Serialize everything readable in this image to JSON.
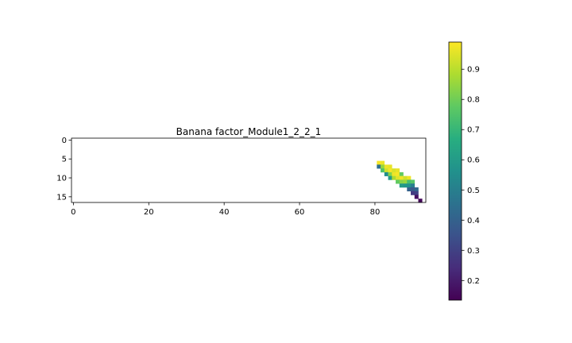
{
  "chart_data": {
    "type": "heatmap",
    "title": "Banana factor_Module1_2_2_1",
    "xlabel": "",
    "ylabel": "",
    "x_range": [
      -0.5,
      93.5
    ],
    "y_range": [
      16.5,
      -0.5
    ],
    "x_ticks": [
      0,
      20,
      40,
      60,
      80
    ],
    "y_ticks": [
      0,
      5,
      10,
      15
    ],
    "colormap": "viridis",
    "colorbar": {
      "range": [
        0.135,
        0.99
      ],
      "ticks": [
        0.2,
        0.3,
        0.4,
        0.5,
        0.6,
        0.7,
        0.8,
        0.9
      ]
    },
    "cells": [
      {
        "x": 81,
        "y": 6,
        "v": 0.98
      },
      {
        "x": 82,
        "y": 6,
        "v": 0.97
      },
      {
        "x": 81,
        "y": 7,
        "v": 0.45
      },
      {
        "x": 82,
        "y": 7,
        "v": 0.85
      },
      {
        "x": 83,
        "y": 7,
        "v": 0.97
      },
      {
        "x": 84,
        "y": 7,
        "v": 0.96
      },
      {
        "x": 82,
        "y": 8,
        "v": 0.75
      },
      {
        "x": 83,
        "y": 8,
        "v": 0.93
      },
      {
        "x": 84,
        "y": 8,
        "v": 0.98
      },
      {
        "x": 85,
        "y": 8,
        "v": 0.94
      },
      {
        "x": 86,
        "y": 8,
        "v": 0.96
      },
      {
        "x": 83,
        "y": 9,
        "v": 0.55
      },
      {
        "x": 84,
        "y": 9,
        "v": 0.83
      },
      {
        "x": 85,
        "y": 9,
        "v": 0.97
      },
      {
        "x": 86,
        "y": 9,
        "v": 0.98
      },
      {
        "x": 87,
        "y": 9,
        "v": 0.78
      },
      {
        "x": 84,
        "y": 10,
        "v": 0.6
      },
      {
        "x": 85,
        "y": 10,
        "v": 0.88
      },
      {
        "x": 86,
        "y": 10,
        "v": 0.95
      },
      {
        "x": 87,
        "y": 10,
        "v": 0.97
      },
      {
        "x": 88,
        "y": 10,
        "v": 0.93
      },
      {
        "x": 89,
        "y": 10,
        "v": 0.97
      },
      {
        "x": 86,
        "y": 11,
        "v": 0.78
      },
      {
        "x": 87,
        "y": 11,
        "v": 0.83
      },
      {
        "x": 88,
        "y": 11,
        "v": 0.85
      },
      {
        "x": 89,
        "y": 11,
        "v": 0.73
      },
      {
        "x": 90,
        "y": 11,
        "v": 0.76
      },
      {
        "x": 87,
        "y": 12,
        "v": 0.6
      },
      {
        "x": 88,
        "y": 12,
        "v": 0.58
      },
      {
        "x": 89,
        "y": 12,
        "v": 0.57
      },
      {
        "x": 90,
        "y": 12,
        "v": 0.5
      },
      {
        "x": 89,
        "y": 13,
        "v": 0.4
      },
      {
        "x": 90,
        "y": 13,
        "v": 0.38
      },
      {
        "x": 91,
        "y": 13,
        "v": 0.42
      },
      {
        "x": 90,
        "y": 14,
        "v": 0.28
      },
      {
        "x": 91,
        "y": 14,
        "v": 0.3
      },
      {
        "x": 91,
        "y": 15,
        "v": 0.17
      },
      {
        "x": 92,
        "y": 16,
        "v": 0.15
      }
    ]
  }
}
